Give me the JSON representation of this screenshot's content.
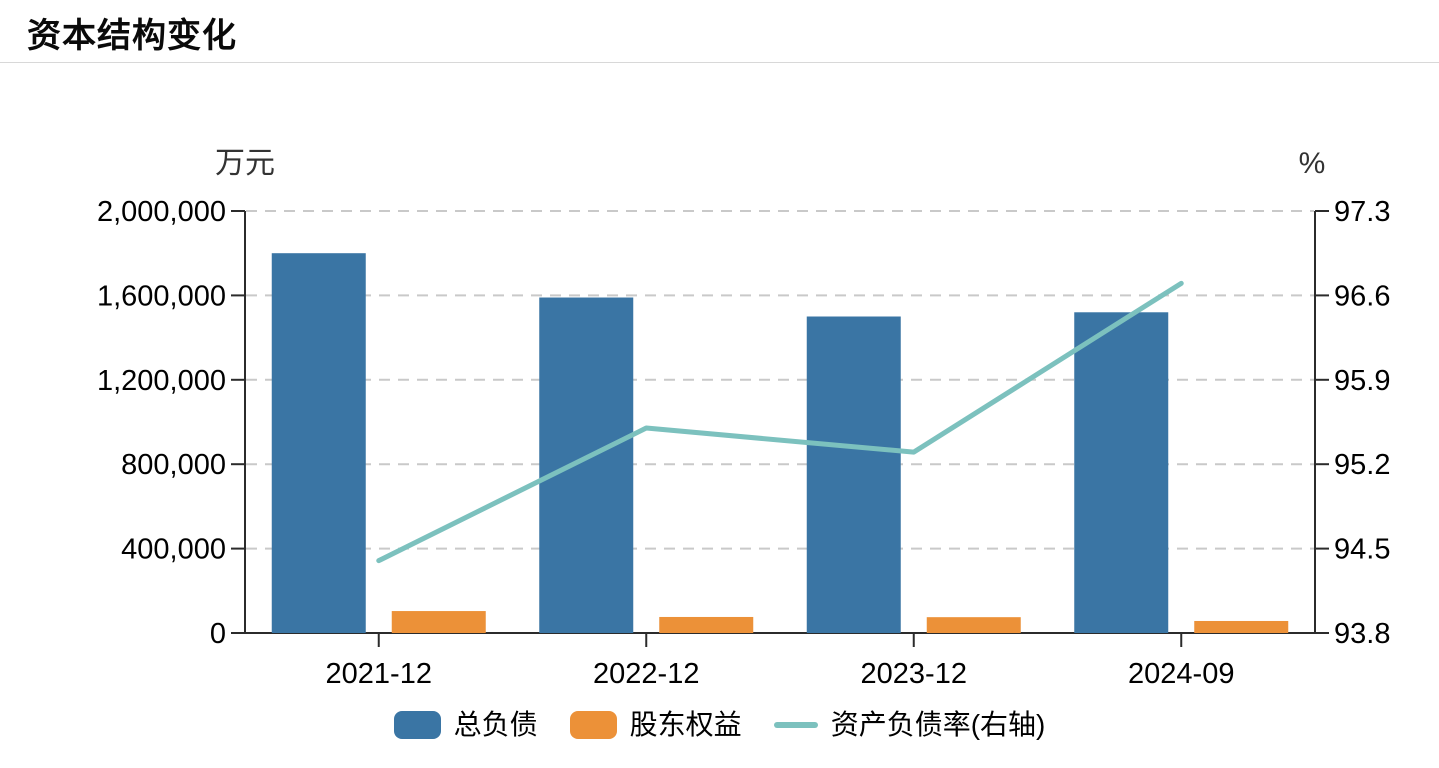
{
  "header": {
    "title": "资本结构变化"
  },
  "chart_data": {
    "type": "combo-bar-line",
    "title": "资本结构变化",
    "categories": [
      "2021-12",
      "2022-12",
      "2023-12",
      "2024-09"
    ],
    "series": [
      {
        "id": "total-liabilities",
        "name": "总负债",
        "type": "bar",
        "axis": "left",
        "color": "#3a75a4",
        "values": [
          1800000,
          1590000,
          1500000,
          1520000
        ]
      },
      {
        "id": "shareholders-equity",
        "name": "股东权益",
        "type": "bar",
        "axis": "left",
        "color": "#ec9138",
        "values": [
          104000,
          76000,
          75000,
          57000
        ]
      },
      {
        "id": "debt-asset-ratio",
        "name": "资产负债率(右轴)",
        "type": "line",
        "axis": "right",
        "color": "#7cc1be",
        "values": [
          94.4,
          95.5,
          95.3,
          96.7
        ]
      }
    ],
    "left_axis": {
      "name": "万元",
      "min": 0,
      "max": 2000000,
      "tick_values": [
        0,
        400000,
        800000,
        1200000,
        1600000,
        2000000
      ],
      "tick_labels": [
        "0",
        "400,000",
        "800,000",
        "1,200,000",
        "1,600,000",
        "2,000,000"
      ]
    },
    "right_axis": {
      "name": "%",
      "min": 93.8,
      "max": 97.3,
      "tick_values": [
        93.8,
        94.5,
        95.2,
        95.9,
        96.6,
        97.3
      ],
      "tick_labels": [
        "93.8",
        "94.5",
        "95.2",
        "95.9",
        "96.6",
        "97.3"
      ]
    },
    "grid": {
      "horizontal_dashed": true,
      "grid_color": "#c9c9c9"
    },
    "axis_color": "#2b2b2b",
    "tick_text_color": "#000000",
    "axis_name_color": "#333333",
    "legend_position": "bottom-center"
  }
}
